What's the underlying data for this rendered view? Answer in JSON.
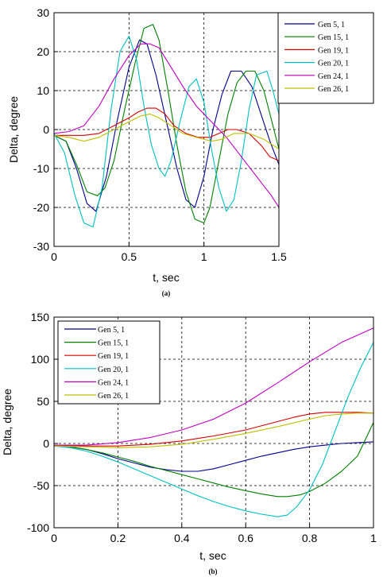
{
  "colors": {
    "Gen 5, 1": "#00008b",
    "Gen 15, 1": "#007f00",
    "Gen 19, 1": "#d40000",
    "Gen 20, 1": "#00bfbf",
    "Gen 24, 1": "#bf00bf",
    "Gen 26, 1": "#bfbf00"
  },
  "chart_data": [
    {
      "type": "line",
      "caption": "(a)",
      "title": "",
      "xlabel": "t, sec",
      "ylabel": "Delta, degree",
      "xlim": [
        0,
        1.5
      ],
      "ylim": [
        -30,
        30
      ],
      "xticks": [
        0,
        0.5,
        1,
        1.5
      ],
      "xtick_labels": [
        "0",
        "0.5",
        "1",
        "1.5"
      ],
      "yticks": [
        -30,
        -20,
        -10,
        0,
        10,
        20,
        30
      ],
      "ytick_labels": [
        "-30",
        "-20",
        "-10",
        "0",
        "10",
        "20",
        "30"
      ],
      "grid": true,
      "legend_position": "top-right",
      "series": [
        {
          "name": "Gen 5, 1",
          "x": [
            0,
            0.08,
            0.15,
            0.22,
            0.28,
            0.35,
            0.42,
            0.5,
            0.57,
            0.62,
            0.68,
            0.75,
            0.82,
            0.88,
            0.94,
            1.0,
            1.06,
            1.12,
            1.18,
            1.25,
            1.32,
            1.38,
            1.44,
            1.5
          ],
          "y": [
            -1.5,
            -3,
            -10,
            -19,
            -21,
            -12,
            2,
            16,
            23,
            22,
            14,
            2,
            -10,
            -18,
            -20,
            -12,
            0,
            9,
            15,
            15,
            11,
            4,
            -3,
            -9
          ]
        },
        {
          "name": "Gen 15, 1",
          "x": [
            0,
            0.08,
            0.15,
            0.22,
            0.29,
            0.34,
            0.4,
            0.47,
            0.54,
            0.6,
            0.66,
            0.7,
            0.76,
            0.82,
            0.88,
            0.94,
            1.0,
            1.04,
            1.1,
            1.16,
            1.22,
            1.28,
            1.34,
            1.4,
            1.44,
            1.5
          ],
          "y": [
            -1.5,
            -3,
            -9,
            -16,
            -17,
            -15,
            -8,
            5,
            17,
            26,
            27,
            23,
            10,
            -4,
            -16,
            -23,
            -24,
            -20,
            -8,
            4,
            12,
            15,
            15,
            10,
            4,
            -5
          ]
        },
        {
          "name": "Gen 19, 1",
          "x": [
            0,
            0.2,
            0.3,
            0.4,
            0.5,
            0.56,
            0.62,
            0.68,
            0.74,
            0.8,
            0.88,
            0.96,
            1.04,
            1.1,
            1.16,
            1.22,
            1.3,
            1.38,
            1.44,
            1.5
          ],
          "y": [
            -1.5,
            -1.5,
            -1,
            1,
            3,
            4.5,
            5.5,
            5.5,
            4,
            1,
            -1,
            -2,
            -2,
            -1,
            0,
            0,
            -1,
            -4,
            -7,
            -8
          ]
        },
        {
          "name": "Gen 20, 1",
          "x": [
            0,
            0.07,
            0.14,
            0.2,
            0.26,
            0.32,
            0.38,
            0.44,
            0.5,
            0.55,
            0.6,
            0.65,
            0.7,
            0.74,
            0.78,
            0.84,
            0.9,
            0.95,
            1.0,
            1.05,
            1.1,
            1.15,
            1.2,
            1.25,
            1.3,
            1.35,
            1.42,
            1.46,
            1.5
          ],
          "y": [
            -1,
            -6,
            -17,
            -24,
            -25,
            -15,
            5,
            20,
            24,
            18,
            6,
            -4,
            -10,
            -12,
            -8,
            2,
            11,
            13,
            7,
            -5,
            -15,
            -21,
            -18,
            -8,
            5,
            14,
            15,
            10,
            4
          ]
        },
        {
          "name": "Gen 24, 1",
          "x": [
            0,
            0.1,
            0.2,
            0.3,
            0.4,
            0.5,
            0.58,
            0.64,
            0.7,
            0.78,
            0.86,
            0.95,
            1.05,
            1.15,
            1.25,
            1.35,
            1.45,
            1.5
          ],
          "y": [
            -1,
            -0.5,
            1,
            6,
            13,
            19,
            22,
            22,
            21,
            16,
            11,
            6,
            2,
            -2,
            -7,
            -12,
            -17,
            -20
          ]
        },
        {
          "name": "Gen 26, 1",
          "x": [
            0,
            0.1,
            0.2,
            0.3,
            0.4,
            0.5,
            0.58,
            0.64,
            0.7,
            0.78,
            0.86,
            0.95,
            1.05,
            1.12,
            1.2,
            1.3,
            1.4,
            1.5
          ],
          "y": [
            -1.5,
            -2,
            -3,
            -2,
            0,
            2,
            3.5,
            4,
            3,
            1,
            -1,
            -2,
            -3,
            -2.5,
            -1,
            -1,
            -2.5,
            -5
          ]
        }
      ]
    },
    {
      "type": "line",
      "caption": "(b)",
      "title": "",
      "xlabel": "t, sec",
      "ylabel": "Delta, degree",
      "xlim": [
        0,
        1
      ],
      "ylim": [
        -100,
        150
      ],
      "xticks": [
        0,
        0.2,
        0.4,
        0.6,
        0.8,
        1
      ],
      "xtick_labels": [
        "0",
        "0.2",
        "0.4",
        "0.6",
        "0.8",
        "1"
      ],
      "yticks": [
        -100,
        -50,
        0,
        50,
        100,
        150
      ],
      "ytick_labels": [
        "-100",
        "-50",
        "0",
        "50",
        "100",
        "150"
      ],
      "grid": true,
      "legend_position": "top-left",
      "series": [
        {
          "name": "Gen 5, 1",
          "x": [
            0,
            0.05,
            0.1,
            0.15,
            0.2,
            0.25,
            0.3,
            0.35,
            0.4,
            0.45,
            0.5,
            0.55,
            0.6,
            0.65,
            0.7,
            0.75,
            0.8,
            0.85,
            0.9,
            0.95,
            1.0
          ],
          "y": [
            -3,
            -4,
            -7,
            -12,
            -18,
            -23,
            -28,
            -31,
            -33,
            -33,
            -30,
            -25,
            -20,
            -15,
            -11,
            -7,
            -4,
            -2,
            0,
            1,
            2
          ]
        },
        {
          "name": "Gen 15, 1",
          "x": [
            0,
            0.05,
            0.1,
            0.15,
            0.2,
            0.25,
            0.3,
            0.35,
            0.4,
            0.45,
            0.5,
            0.55,
            0.6,
            0.65,
            0.7,
            0.73,
            0.77,
            0.8,
            0.85,
            0.9,
            0.95,
            1.0
          ],
          "y": [
            -3,
            -4,
            -7,
            -11,
            -16,
            -21,
            -27,
            -32,
            -37,
            -42,
            -47,
            -52,
            -56,
            -60,
            -63,
            -63,
            -61,
            -57,
            -47,
            -33,
            -15,
            25
          ]
        },
        {
          "name": "Gen 19, 1",
          "x": [
            0,
            0.1,
            0.2,
            0.3,
            0.4,
            0.5,
            0.6,
            0.7,
            0.75,
            0.8,
            0.85,
            0.9,
            0.95,
            1.0
          ],
          "y": [
            -2,
            -3,
            -3,
            -1,
            3,
            9,
            16,
            26,
            31,
            35,
            37,
            37,
            37,
            36
          ]
        },
        {
          "name": "Gen 20, 1",
          "x": [
            0,
            0.05,
            0.1,
            0.15,
            0.2,
            0.25,
            0.3,
            0.35,
            0.4,
            0.45,
            0.5,
            0.55,
            0.6,
            0.65,
            0.7,
            0.73,
            0.76,
            0.8,
            0.84,
            0.88,
            0.92,
            0.96,
            1.0
          ],
          "y": [
            -3,
            -5,
            -9,
            -15,
            -22,
            -30,
            -38,
            -46,
            -54,
            -62,
            -69,
            -75,
            -80,
            -84,
            -87,
            -85,
            -75,
            -55,
            -25,
            15,
            55,
            90,
            120
          ]
        },
        {
          "name": "Gen 24, 1",
          "x": [
            0,
            0.1,
            0.2,
            0.3,
            0.4,
            0.5,
            0.6,
            0.7,
            0.8,
            0.9,
            1.0
          ],
          "y": [
            -2,
            -2,
            1,
            7,
            16,
            29,
            48,
            72,
            97,
            120,
            137
          ]
        },
        {
          "name": "Gen 26, 1",
          "x": [
            0,
            0.1,
            0.2,
            0.3,
            0.4,
            0.5,
            0.6,
            0.7,
            0.8,
            0.85,
            0.9,
            0.95,
            1.0
          ],
          "y": [
            -3,
            -4,
            -5,
            -4,
            -1,
            5,
            12,
            20,
            29,
            33,
            35,
            36,
            36
          ]
        }
      ]
    }
  ]
}
